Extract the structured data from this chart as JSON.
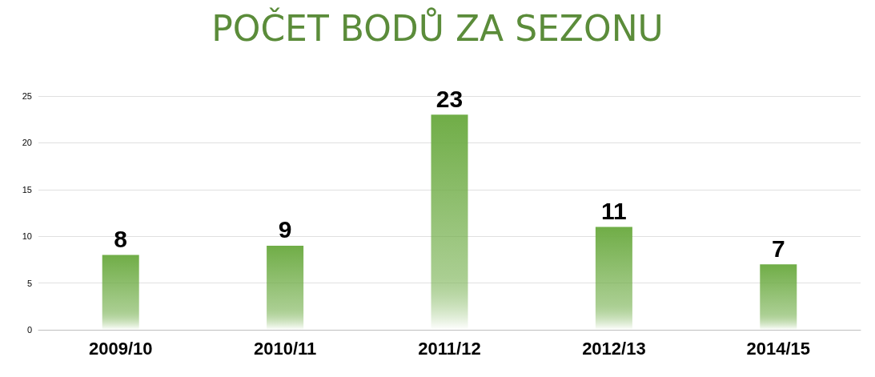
{
  "chart_data": {
    "type": "bar",
    "title": "POČET BODŮ ZA SEZONU",
    "categories": [
      "2009/10",
      "2010/11",
      "2011/12",
      "2012/13",
      "2014/15"
    ],
    "values": [
      8,
      9,
      23,
      11,
      7
    ],
    "color": "#70ad47",
    "ylim": [
      0,
      25
    ],
    "yticks": [
      0,
      5,
      10,
      15,
      20,
      25
    ],
    "grid": true,
    "data_labels": true
  }
}
